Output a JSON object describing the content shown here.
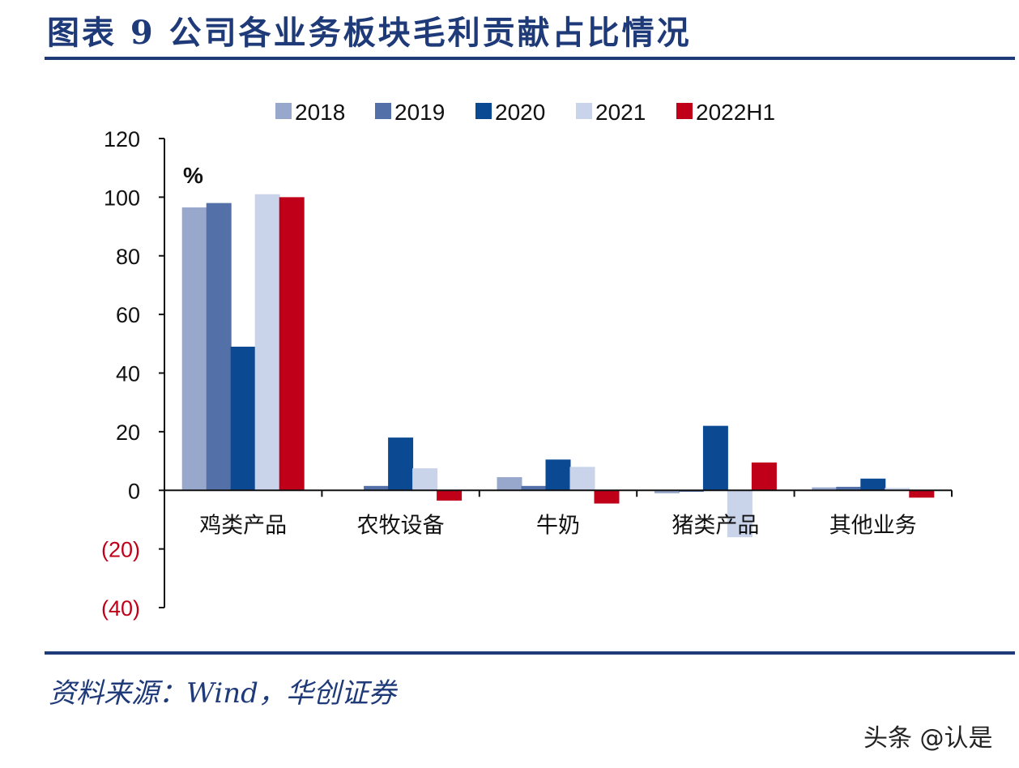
{
  "title": "图表 9   公司各业务板块毛利贡献占比情况",
  "source": "资料来源：Wind，华创证券",
  "watermark": "头条 @认是",
  "chart_data": {
    "type": "bar",
    "unit": "%",
    "categories": [
      "鸡类产品",
      "农牧设备",
      "牛奶",
      "猪类产品",
      "其他业务"
    ],
    "series": [
      {
        "name": "2018",
        "color": "#97a8cc",
        "values": [
          96.5,
          0,
          4.5,
          -1,
          1
        ]
      },
      {
        "name": "2019",
        "color": "#5370a8",
        "values": [
          98,
          1.5,
          1.5,
          -0.5,
          1.2
        ]
      },
      {
        "name": "2020",
        "color": "#0b4a92",
        "values": [
          49,
          18,
          10.5,
          22,
          4
        ]
      },
      {
        "name": "2021",
        "color": "#c9d3ea",
        "values": [
          101,
          7.5,
          8,
          -16,
          0.8
        ]
      },
      {
        "name": "2022H1",
        "color": "#c00018",
        "values": [
          100,
          -3.5,
          -4.5,
          9.5,
          -2.5
        ]
      }
    ],
    "ylim": [
      -40,
      120
    ],
    "yticks": [
      {
        "value": 120,
        "label": "120",
        "color": "#111111"
      },
      {
        "value": 100,
        "label": "100",
        "color": "#111111"
      },
      {
        "value": 80,
        "label": "80",
        "color": "#111111"
      },
      {
        "value": 60,
        "label": "60",
        "color": "#111111"
      },
      {
        "value": 40,
        "label": "40",
        "color": "#111111"
      },
      {
        "value": 20,
        "label": "20",
        "color": "#111111"
      },
      {
        "value": 0,
        "label": "0",
        "color": "#111111"
      },
      {
        "value": -20,
        "label": "(20)",
        "color": "#c00018"
      },
      {
        "value": -40,
        "label": "(40)",
        "color": "#c00018"
      }
    ],
    "legend_position": "top",
    "grid": false
  }
}
